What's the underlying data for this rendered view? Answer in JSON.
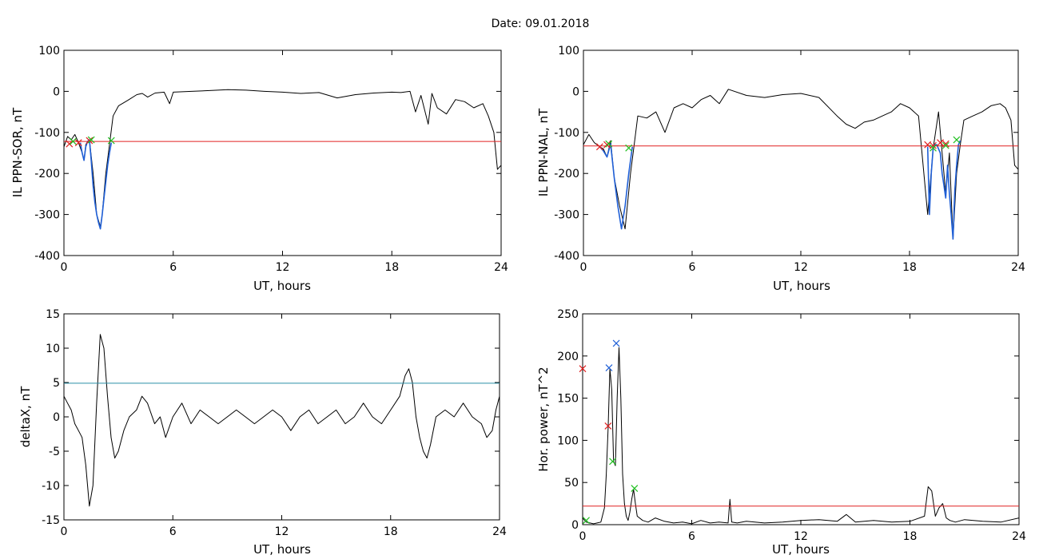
{
  "page_title": "Date:  09.01.2018",
  "chart_data": [
    {
      "id": "sor",
      "type": "line",
      "xlabel": "UT, hours",
      "ylabel": "IL PPN-SOR, nT",
      "xlim": [
        0,
        24
      ],
      "ylim": [
        -400,
        100
      ],
      "xticks": [
        0,
        6,
        12,
        18,
        24
      ],
      "yticks": [
        -400,
        -300,
        -200,
        -100,
        0,
        100
      ],
      "grid": false,
      "series": [
        {
          "color": "#000000",
          "x": [
            0,
            0.2,
            0.4,
            0.6,
            0.8,
            1.0,
            1.1,
            1.2,
            1.3,
            1.4,
            1.6,
            1.8,
            2.0,
            2.1,
            2.2,
            2.3,
            2.5,
            2.7,
            3.0,
            3.5,
            4.0,
            4.3,
            4.6,
            5.0,
            5.5,
            5.8,
            6.0,
            7,
            8,
            9,
            10,
            11,
            12,
            13,
            14,
            15,
            16,
            17,
            18,
            18.5,
            19.0,
            19.3,
            19.6,
            20.0,
            20.2,
            20.5,
            21,
            21.5,
            22,
            22.5,
            23.0,
            23.3,
            23.6,
            23.8,
            24.0
          ],
          "y": [
            -135,
            -110,
            -118,
            -105,
            -125,
            -150,
            -168,
            -130,
            -122,
            -118,
            -200,
            -300,
            -330,
            -300,
            -250,
            -200,
            -130,
            -60,
            -35,
            -22,
            -8,
            -5,
            -14,
            -4,
            -2,
            -30,
            -2,
            0,
            2,
            4,
            3,
            0,
            -2,
            -5,
            -3,
            -16,
            -8,
            -4,
            -2,
            -3,
            0,
            -50,
            -10,
            -80,
            -5,
            -40,
            -55,
            -20,
            -25,
            -40,
            -30,
            -60,
            -100,
            -190,
            -180
          ]
        },
        {
          "color": "#1f5fd6",
          "x": [
            0.9,
            1.0,
            1.1,
            1.2,
            1.3,
            1.4,
            1.5,
            1.6,
            1.7,
            1.8,
            1.9,
            2.0,
            2.1,
            2.2,
            2.3,
            2.4,
            2.5,
            2.6
          ],
          "y": [
            -125,
            -150,
            -168,
            -135,
            -122,
            -118,
            -170,
            -230,
            -270,
            -300,
            -320,
            -335,
            -300,
            -260,
            -220,
            -180,
            -150,
            -125
          ]
        },
        {
          "color": "#e02020",
          "x": [
            0,
            24
          ],
          "y": [
            -122,
            -122
          ]
        }
      ],
      "markers": [
        {
          "color": "#e02020",
          "x": [
            0.3,
            0.8,
            1.4
          ],
          "y": [
            -128,
            -125,
            -120
          ]
        },
        {
          "color": "#20c020",
          "x": [
            0.5,
            1.5,
            2.6
          ],
          "y": [
            -122,
            -118,
            -120
          ]
        }
      ]
    },
    {
      "id": "nal",
      "type": "line",
      "xlabel": "UT, hours",
      "ylabel": "IL PPN-NAL, nT",
      "xlim": [
        0,
        24
      ],
      "ylim": [
        -400,
        100
      ],
      "xticks": [
        0,
        6,
        12,
        18,
        24
      ],
      "yticks": [
        -400,
        -300,
        -200,
        -100,
        0,
        100
      ],
      "grid": false,
      "series": [
        {
          "color": "#000000",
          "x": [
            0,
            0.3,
            0.6,
            0.9,
            1.1,
            1.3,
            1.5,
            1.7,
            2.0,
            2.3,
            2.6,
            2.8,
            3.0,
            3.5,
            4.0,
            4.5,
            5.0,
            5.5,
            6.0,
            6.5,
            7.0,
            7.5,
            8.0,
            9,
            10,
            11,
            12,
            13,
            14,
            14.5,
            15,
            15.5,
            16,
            16.5,
            17,
            17.5,
            18.0,
            18.5,
            19.0,
            19.3,
            19.6,
            19.8,
            20.0,
            20.2,
            20.4,
            20.6,
            20.8,
            21,
            21.5,
            22,
            22.5,
            23.0,
            23.3,
            23.6,
            23.8,
            24
          ],
          "y": [
            -130,
            -105,
            -125,
            -135,
            -140,
            -160,
            -120,
            -210,
            -280,
            -335,
            -200,
            -130,
            -60,
            -65,
            -50,
            -100,
            -40,
            -30,
            -40,
            -20,
            -10,
            -30,
            5,
            -10,
            -15,
            -8,
            -5,
            -15,
            -60,
            -80,
            -90,
            -75,
            -70,
            -60,
            -50,
            -30,
            -40,
            -60,
            -300,
            -140,
            -50,
            -150,
            -250,
            -150,
            -360,
            -200,
            -130,
            -70,
            -60,
            -50,
            -35,
            -30,
            -40,
            -70,
            -180,
            -190
          ]
        },
        {
          "color": "#1f5fd6",
          "x": [
            0.9,
            1.1,
            1.3,
            1.5,
            1.7,
            1.9,
            2.1,
            2.3,
            2.5,
            2.7
          ],
          "y": [
            -135,
            -145,
            -160,
            -128,
            -210,
            -280,
            -335,
            -280,
            -200,
            -135
          ]
        },
        {
          "color": "#1f5fd6",
          "x": [
            19.0,
            19.1,
            19.2,
            19.3,
            19.4,
            19.5,
            19.6,
            19.7,
            19.8,
            19.9,
            20.0,
            20.1,
            20.2,
            20.3,
            20.4,
            20.5,
            20.6,
            20.7,
            20.8
          ],
          "y": [
            -135,
            -300,
            -200,
            -140,
            -130,
            -130,
            -140,
            -150,
            -200,
            -230,
            -260,
            -180,
            -250,
            -300,
            -360,
            -240,
            -180,
            -130,
            -120
          ]
        },
        {
          "color": "#e02020",
          "x": [
            0,
            24
          ],
          "y": [
            -133,
            -133
          ]
        }
      ],
      "markers": [
        {
          "color": "#e02020",
          "x": [
            0.9,
            1.3,
            19.0,
            19.3,
            19.7,
            20.0
          ],
          "y": [
            -135,
            -130,
            -130,
            -132,
            -125,
            -128
          ]
        },
        {
          "color": "#20c020",
          "x": [
            1.4,
            2.5,
            19.3,
            20.0,
            20.6
          ],
          "y": [
            -128,
            -138,
            -138,
            -132,
            -118
          ]
        }
      ]
    },
    {
      "id": "deltax",
      "type": "line",
      "xlabel": "UT, hours",
      "ylabel": "deltaX, nT",
      "xlim": [
        0,
        24
      ],
      "ylim": [
        -15,
        15
      ],
      "xticks": [
        0,
        6,
        12,
        18,
        24
      ],
      "yticks": [
        -15,
        -10,
        -5,
        0,
        5,
        10,
        15
      ],
      "grid": false,
      "series": [
        {
          "color": "#000000",
          "x": [
            0,
            0.2,
            0.4,
            0.6,
            0.8,
            1.0,
            1.2,
            1.4,
            1.6,
            1.8,
            2.0,
            2.2,
            2.4,
            2.6,
            2.8,
            3.0,
            3.3,
            3.6,
            4.0,
            4.3,
            4.6,
            5.0,
            5.3,
            5.6,
            6.0,
            6.5,
            7.0,
            7.5,
            8.0,
            8.5,
            9.0,
            9.5,
            10,
            10.5,
            11,
            11.5,
            12,
            12.5,
            13,
            13.5,
            14,
            14.5,
            15,
            15.5,
            16,
            16.5,
            17,
            17.5,
            18.0,
            18.5,
            18.8,
            19.0,
            19.2,
            19.4,
            19.6,
            19.8,
            20.0,
            20.2,
            20.5,
            21,
            21.5,
            22,
            22.5,
            23.0,
            23.3,
            23.6,
            23.8,
            24
          ],
          "y": [
            3,
            2,
            1,
            -1,
            -2,
            -3,
            -7,
            -13,
            -10,
            2,
            12,
            10,
            3,
            -3,
            -6,
            -5,
            -2,
            0,
            1,
            3,
            2,
            -1,
            0,
            -3,
            0,
            2,
            -1,
            1,
            0,
            -1,
            0,
            1,
            0,
            -1,
            0,
            1,
            0,
            -2,
            0,
            1,
            -1,
            0,
            1,
            -1,
            0,
            2,
            0,
            -1,
            1,
            3,
            6,
            7,
            5,
            0,
            -3,
            -5,
            -6,
            -4,
            0,
            1,
            0,
            2,
            0,
            -1,
            -3,
            -2,
            1,
            3
          ]
        },
        {
          "color": "#2a8fa8",
          "x": [
            0,
            24
          ],
          "y": [
            4.9,
            4.9
          ]
        }
      ],
      "markers": []
    },
    {
      "id": "power",
      "type": "line",
      "xlabel": "UT, hours",
      "ylabel": "Hor. power, nT^2",
      "xlim": [
        0,
        24
      ],
      "ylim": [
        0,
        250
      ],
      "xticks": [
        0,
        6,
        12,
        18,
        24
      ],
      "yticks": [
        0,
        50,
        100,
        150,
        200,
        250
      ],
      "grid": false,
      "series": [
        {
          "color": "#000000",
          "x": [
            0,
            0.2,
            0.4,
            0.6,
            0.8,
            1.0,
            1.2,
            1.3,
            1.4,
            1.5,
            1.6,
            1.7,
            1.8,
            1.9,
            2.0,
            2.1,
            2.2,
            2.3,
            2.4,
            2.5,
            2.6,
            2.7,
            2.8,
            2.9,
            3.0,
            3.3,
            3.6,
            4.0,
            4.5,
            5.0,
            5.5,
            6.0,
            6.5,
            7.0,
            7.5,
            8.0,
            8.1,
            8.2,
            8.5,
            9,
            10,
            11,
            12,
            13,
            14,
            14.5,
            15,
            16,
            17,
            18,
            18.8,
            19.0,
            19.2,
            19.4,
            19.6,
            19.8,
            20.0,
            20.2,
            20.5,
            21,
            22,
            23,
            24
          ],
          "y": [
            8,
            3,
            2,
            1,
            2,
            3,
            20,
            60,
            115,
            185,
            160,
            75,
            70,
            150,
            210,
            150,
            60,
            25,
            10,
            5,
            15,
            30,
            42,
            25,
            10,
            5,
            3,
            8,
            4,
            2,
            3,
            1,
            5,
            2,
            3,
            2,
            30,
            3,
            2,
            4,
            2,
            3,
            5,
            6,
            4,
            12,
            3,
            5,
            3,
            4,
            10,
            45,
            40,
            10,
            20,
            25,
            8,
            5,
            3,
            6,
            4,
            3,
            8
          ]
        },
        {
          "color": "#e02020",
          "x": [
            0,
            24
          ],
          "y": [
            22,
            22
          ]
        }
      ],
      "markers": [
        {
          "color": "#e02020",
          "x": [
            0.0,
            1.4
          ],
          "y": [
            185,
            117
          ]
        },
        {
          "color": "#1f5fd6",
          "x": [
            1.45,
            1.85
          ],
          "y": [
            186,
            215
          ]
        },
        {
          "color": "#20c020",
          "x": [
            1.65,
            2.85,
            0.2
          ],
          "y": [
            75,
            43,
            5
          ]
        }
      ]
    }
  ]
}
